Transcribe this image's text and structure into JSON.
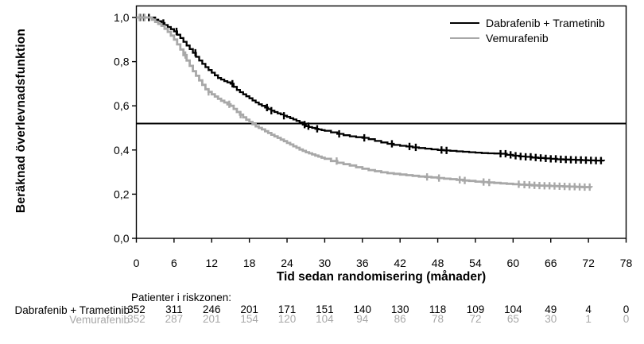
{
  "chart_data": {
    "type": "line",
    "subtype": "kaplan-meier-step-curve",
    "title": "",
    "xlabel": "Tid sedan randomisering (månader)",
    "ylabel": "Beräknad överlevnadsfunktion",
    "xlim": [
      0,
      78
    ],
    "ylim": [
      0.0,
      1.0
    ],
    "grid": false,
    "legend_position": "top-right",
    "x_ticks": [
      0,
      6,
      12,
      18,
      24,
      30,
      36,
      42,
      48,
      54,
      60,
      66,
      72,
      78
    ],
    "y_ticks": [
      {
        "value": 1.0,
        "label": "1,0"
      },
      {
        "value": 0.8,
        "label": "0,8"
      },
      {
        "value": 0.6,
        "label": "0,6"
      },
      {
        "value": 0.4,
        "label": "0,4"
      },
      {
        "value": 0.2,
        "label": "0,2"
      },
      {
        "value": 0.0,
        "label": "0,0"
      }
    ],
    "reference_line": {
      "value": 0.52,
      "color": "#000000"
    },
    "series": [
      {
        "name": "Dabrafenib + Trametinib",
        "color": "#000000",
        "points": [
          [
            0,
            1.0
          ],
          [
            2.5,
            1.0
          ],
          [
            3,
            0.99
          ],
          [
            3.5,
            0.983
          ],
          [
            4,
            0.975
          ],
          [
            4.5,
            0.966
          ],
          [
            5,
            0.957
          ],
          [
            5.5,
            0.947
          ],
          [
            6,
            0.937
          ],
          [
            6.5,
            0.922
          ],
          [
            7,
            0.907
          ],
          [
            7.5,
            0.89
          ],
          [
            8,
            0.873
          ],
          [
            8.5,
            0.857
          ],
          [
            9,
            0.84
          ],
          [
            9.5,
            0.822
          ],
          [
            10,
            0.805
          ],
          [
            10.5,
            0.79
          ],
          [
            11,
            0.775
          ],
          [
            11.5,
            0.762
          ],
          [
            12,
            0.75
          ],
          [
            12.5,
            0.738
          ],
          [
            13,
            0.726
          ],
          [
            13.5,
            0.719
          ],
          [
            14,
            0.712
          ],
          [
            14.5,
            0.706
          ],
          [
            15,
            0.7
          ],
          [
            15.5,
            0.686
          ],
          [
            16,
            0.672
          ],
          [
            16.5,
            0.662
          ],
          [
            17,
            0.652
          ],
          [
            17.5,
            0.643
          ],
          [
            18,
            0.634
          ],
          [
            18.5,
            0.624
          ],
          [
            19,
            0.615
          ],
          [
            19.5,
            0.607
          ],
          [
            20,
            0.6
          ],
          [
            20.5,
            0.592
          ],
          [
            21,
            0.585
          ],
          [
            21.5,
            0.578
          ],
          [
            22,
            0.572
          ],
          [
            22.5,
            0.566
          ],
          [
            23,
            0.561
          ],
          [
            23.5,
            0.555
          ],
          [
            24,
            0.55
          ],
          [
            24.5,
            0.544
          ],
          [
            25,
            0.538
          ],
          [
            25.5,
            0.532
          ],
          [
            26,
            0.525
          ],
          [
            26.5,
            0.515
          ],
          [
            27,
            0.508
          ],
          [
            27.5,
            0.504
          ],
          [
            28,
            0.5
          ],
          [
            28.5,
            0.496
          ],
          [
            29,
            0.493
          ],
          [
            29.5,
            0.49
          ],
          [
            30,
            0.487
          ],
          [
            31,
            0.48
          ],
          [
            32,
            0.473
          ],
          [
            33,
            0.467
          ],
          [
            34,
            0.462
          ],
          [
            35,
            0.458
          ],
          [
            36,
            0.455
          ],
          [
            37,
            0.449
          ],
          [
            38,
            0.441
          ],
          [
            39,
            0.434
          ],
          [
            40,
            0.428
          ],
          [
            41,
            0.423
          ],
          [
            42,
            0.419
          ],
          [
            43,
            0.416
          ],
          [
            44,
            0.412
          ],
          [
            45,
            0.409
          ],
          [
            46,
            0.406
          ],
          [
            47,
            0.403
          ],
          [
            48,
            0.4
          ],
          [
            49,
            0.398
          ],
          [
            50,
            0.396
          ],
          [
            51,
            0.394
          ],
          [
            52,
            0.392
          ],
          [
            53,
            0.39
          ],
          [
            54,
            0.388
          ],
          [
            55,
            0.386
          ],
          [
            56,
            0.385
          ],
          [
            57,
            0.384
          ],
          [
            58,
            0.383
          ],
          [
            59,
            0.378
          ],
          [
            60,
            0.374
          ],
          [
            61,
            0.371
          ],
          [
            62,
            0.369
          ],
          [
            63,
            0.366
          ],
          [
            64,
            0.364
          ],
          [
            65,
            0.362
          ],
          [
            66,
            0.36
          ],
          [
            67,
            0.358
          ],
          [
            68,
            0.357
          ],
          [
            69,
            0.356
          ],
          [
            70,
            0.355
          ],
          [
            71,
            0.354
          ],
          [
            72,
            0.353
          ],
          [
            73,
            0.352
          ],
          [
            74.5,
            0.351
          ]
        ],
        "censor_marks": [
          0.6,
          1.2,
          2.0,
          4.3,
          6.4,
          9.4,
          15.3,
          20.8,
          21.5,
          23.5,
          26.8,
          27.4,
          28.8,
          32.3,
          36.3,
          40.7,
          43.5,
          44.5,
          48.6,
          49.4,
          58.0,
          58.8,
          59.6,
          60.4,
          61.2,
          62.0,
          62.8,
          63.6,
          64.4,
          65.2,
          66.0,
          66.8,
          67.6,
          68.4,
          69.2,
          70.0,
          70.8,
          71.6,
          72.4,
          73.2,
          74.0
        ]
      },
      {
        "name": "Vemurafenib",
        "color": "#a8a8a8",
        "points": [
          [
            0,
            1.0
          ],
          [
            2,
            1.0
          ],
          [
            2.5,
            0.99
          ],
          [
            3,
            0.98
          ],
          [
            3.5,
            0.971
          ],
          [
            4,
            0.962
          ],
          [
            4.5,
            0.949
          ],
          [
            5,
            0.935
          ],
          [
            5.5,
            0.918
          ],
          [
            6,
            0.9
          ],
          [
            6.5,
            0.878
          ],
          [
            7,
            0.855
          ],
          [
            7.5,
            0.83
          ],
          [
            8,
            0.805
          ],
          [
            8.5,
            0.781
          ],
          [
            9,
            0.757
          ],
          [
            9.5,
            0.736
          ],
          [
            10,
            0.715
          ],
          [
            10.5,
            0.695
          ],
          [
            11,
            0.675
          ],
          [
            11.5,
            0.663
          ],
          [
            12,
            0.652
          ],
          [
            12.5,
            0.642
          ],
          [
            13,
            0.632
          ],
          [
            13.5,
            0.623
          ],
          [
            14,
            0.615
          ],
          [
            14.5,
            0.607
          ],
          [
            15,
            0.6
          ],
          [
            15.5,
            0.586
          ],
          [
            16,
            0.572
          ],
          [
            16.5,
            0.56
          ],
          [
            17,
            0.548
          ],
          [
            17.5,
            0.537
          ],
          [
            18,
            0.527
          ],
          [
            18.5,
            0.517
          ],
          [
            19,
            0.507
          ],
          [
            19.5,
            0.5
          ],
          [
            20,
            0.493
          ],
          [
            20.5,
            0.485
          ],
          [
            21,
            0.477
          ],
          [
            21.5,
            0.469
          ],
          [
            22,
            0.462
          ],
          [
            22.5,
            0.455
          ],
          [
            23,
            0.447
          ],
          [
            23.5,
            0.44
          ],
          [
            24,
            0.432
          ],
          [
            24.5,
            0.425
          ],
          [
            25,
            0.417
          ],
          [
            25.5,
            0.41
          ],
          [
            26,
            0.402
          ],
          [
            26.5,
            0.396
          ],
          [
            27,
            0.39
          ],
          [
            27.5,
            0.385
          ],
          [
            28,
            0.38
          ],
          [
            28.5,
            0.375
          ],
          [
            29,
            0.37
          ],
          [
            29.5,
            0.365
          ],
          [
            30,
            0.36
          ],
          [
            31,
            0.35
          ],
          [
            32,
            0.342
          ],
          [
            33,
            0.336
          ],
          [
            34,
            0.33
          ],
          [
            35,
            0.322
          ],
          [
            36,
            0.315
          ],
          [
            37,
            0.309
          ],
          [
            38,
            0.304
          ],
          [
            39,
            0.299
          ],
          [
            40,
            0.295
          ],
          [
            41,
            0.292
          ],
          [
            42,
            0.289
          ],
          [
            43,
            0.286
          ],
          [
            44,
            0.283
          ],
          [
            45,
            0.28
          ],
          [
            46,
            0.278
          ],
          [
            47,
            0.276
          ],
          [
            48,
            0.273
          ],
          [
            49,
            0.27
          ],
          [
            50,
            0.268
          ],
          [
            51,
            0.265
          ],
          [
            52,
            0.262
          ],
          [
            53,
            0.26
          ],
          [
            54,
            0.257
          ],
          [
            55,
            0.255
          ],
          [
            56,
            0.253
          ],
          [
            57,
            0.251
          ],
          [
            58,
            0.249
          ],
          [
            59,
            0.247
          ],
          [
            60,
            0.245
          ],
          [
            61,
            0.243
          ],
          [
            62,
            0.242
          ],
          [
            63,
            0.24
          ],
          [
            64,
            0.239
          ],
          [
            65,
            0.238
          ],
          [
            66,
            0.237
          ],
          [
            67,
            0.236
          ],
          [
            68,
            0.235
          ],
          [
            69,
            0.234
          ],
          [
            70,
            0.233
          ],
          [
            71,
            0.232
          ],
          [
            72.5,
            0.231
          ]
        ],
        "censor_marks": [
          0.5,
          1.3,
          7.8,
          11.5,
          14.8,
          16.6,
          31.9,
          46.3,
          48.2,
          51.5,
          52.3,
          55.3,
          56.2,
          60.9,
          61.8,
          62.6,
          63.4,
          64.2,
          65.0,
          65.8,
          66.6,
          67.4,
          68.2,
          69.0,
          69.8,
          70.6,
          71.4,
          72.2
        ]
      }
    ],
    "risk_table": {
      "header": "Patienter i riskzonen:",
      "time_points": [
        0,
        6,
        12,
        18,
        24,
        30,
        36,
        42,
        48,
        54,
        60,
        66,
        72,
        78
      ],
      "rows": [
        {
          "label": "Dabrafenib + Trametinib",
          "color": "#000000",
          "values": [
            352,
            311,
            246,
            201,
            171,
            151,
            140,
            130,
            118,
            109,
            104,
            49,
            4,
            0
          ]
        },
        {
          "label": "Vemurafenib",
          "color": "#a8a8a8",
          "values": [
            352,
            287,
            201,
            154,
            120,
            104,
            94,
            86,
            78,
            72,
            65,
            30,
            1,
            0
          ]
        }
      ]
    }
  }
}
